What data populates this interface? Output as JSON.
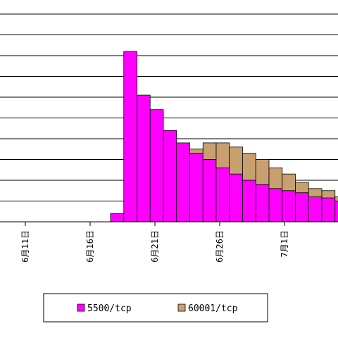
{
  "chart_data": {
    "type": "bar",
    "stacked": true,
    "title": "",
    "xlabel": "",
    "ylabel": "",
    "ylim": [
      0,
      10
    ],
    "grid": true,
    "legend_position": "bottom",
    "x_tick_labels": [
      "6月11日",
      "6月16日",
      "6月21日",
      "6月26日",
      "7月1日"
    ],
    "categories": [
      "6/18",
      "6/19",
      "6/20",
      "6/21",
      "6/22",
      "6/23",
      "6/24",
      "6/25",
      "6/26",
      "6/27",
      "6/28",
      "6/29",
      "6/30",
      "7/1",
      "7/2",
      "7/3",
      "7/4",
      "7/5"
    ],
    "series": [
      {
        "name": "5500/tcp",
        "color": "#ff00ff",
        "values": [
          0.4,
          8.2,
          6.1,
          5.4,
          4.4,
          3.8,
          3.3,
          3.0,
          2.6,
          2.3,
          2.0,
          1.8,
          1.6,
          1.5,
          1.4,
          1.2,
          1.15,
          1.0
        ]
      },
      {
        "name": "60001/tcp",
        "color": "#c8a070",
        "values": [
          0,
          0,
          0,
          0,
          0,
          0,
          0.2,
          0.8,
          1.2,
          1.3,
          1.3,
          1.2,
          1.0,
          0.8,
          0.5,
          0.4,
          0.35,
          0.2
        ]
      }
    ]
  }
}
